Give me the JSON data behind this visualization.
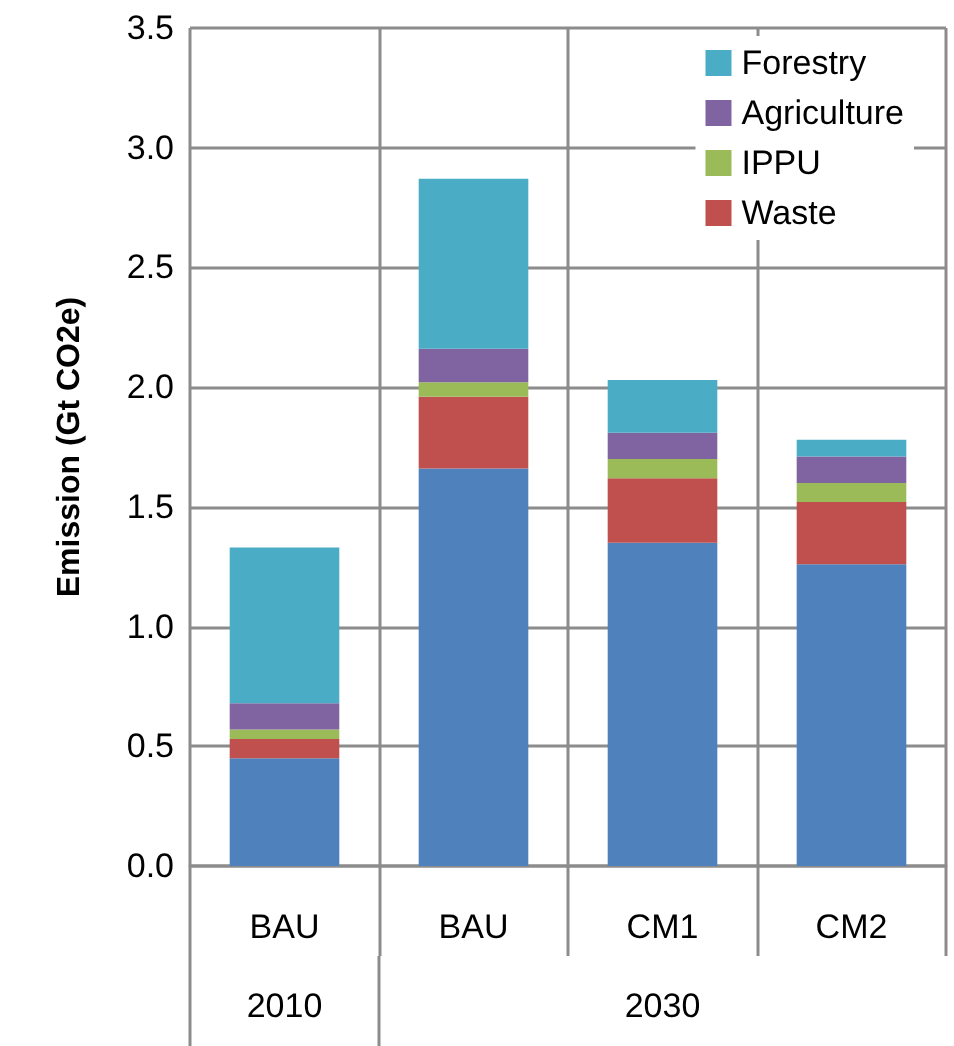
{
  "chart_data": {
    "type": "bar",
    "stacked": true,
    "ylabel": "Emission (Gt CO2e)",
    "categories": [
      "BAU",
      "BAU",
      "CM1",
      "CM2"
    ],
    "series": [
      {
        "color": "#4f81bd",
        "values": [
          0.45,
          1.66,
          1.35,
          1.26
        ]
      },
      {
        "name": "Waste",
        "color": "#c0504d",
        "values": [
          0.08,
          0.3,
          0.27,
          0.26
        ]
      },
      {
        "name": "IPPU",
        "color": "#9bbb59",
        "values": [
          0.04,
          0.06,
          0.08,
          0.08
        ]
      },
      {
        "name": "Agriculture",
        "color": "#8064a2",
        "values": [
          0.11,
          0.14,
          0.11,
          0.11
        ]
      },
      {
        "name": "Forestry",
        "color": "#4bacc6",
        "values": [
          0.65,
          0.71,
          0.22,
          0.07
        ]
      }
    ],
    "ylim": [
      0,
      3.5
    ],
    "yticks": [
      {
        "value": 0,
        "label": "0.0"
      },
      {
        "value": 0.5,
        "label": "0.5"
      },
      {
        "value": 1,
        "label": "1.0"
      },
      {
        "value": 1.5,
        "label": "1.5"
      },
      {
        "value": 2,
        "label": "2.0"
      },
      {
        "value": 2.5,
        "label": "2.5"
      },
      {
        "value": 3,
        "label": "3.0"
      },
      {
        "value": 3.5,
        "label": "3.5"
      }
    ],
    "grid": true,
    "legend": "top right",
    "annotations": [
      "2010",
      "2030"
    ]
  }
}
